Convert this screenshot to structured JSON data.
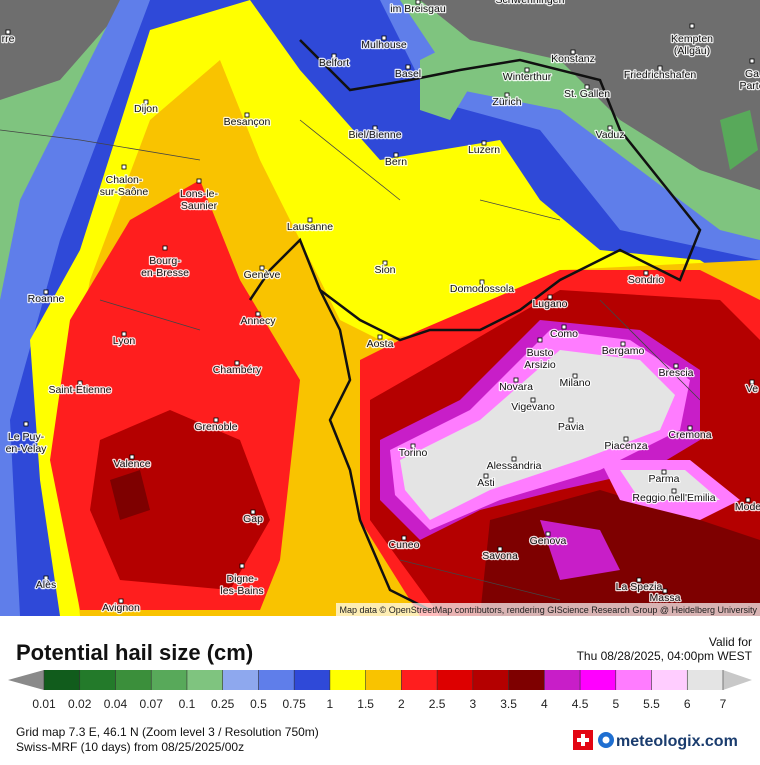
{
  "map": {
    "cities": [
      [
        "im Breisgau"
      ],
      [
        "Schwenningen"
      ],
      [
        "Mulhouse"
      ],
      [
        "Belfort"
      ],
      [
        "Basel"
      ],
      [
        "Konstanz"
      ],
      [
        "Kempten",
        "(Allgäu)"
      ],
      [
        "Winterthur"
      ],
      [
        "Friedrichshafen"
      ],
      [
        "St. Gallen"
      ],
      [
        "Zürich"
      ],
      [
        "Dijon"
      ],
      [
        "Besançon"
      ],
      [
        "Vaduz"
      ],
      [
        "Biel/Bienne"
      ],
      [
        "Chalon-",
        "sur-Saône"
      ],
      [
        "Bern"
      ],
      [
        "Luzern"
      ],
      [
        "Lons-le-",
        "Saunier"
      ],
      [
        "Lausanne"
      ],
      [
        "Bourg-",
        "en-Bresse"
      ],
      [
        "Sion"
      ],
      [
        "Genève"
      ],
      [
        "Domodossola"
      ],
      [
        "Sondrio"
      ],
      [
        "Lugano"
      ],
      [
        "Roanne"
      ],
      [
        "Annecy"
      ],
      [
        "Como"
      ],
      [
        "Lyon"
      ],
      [
        "Aosta"
      ],
      [
        "Bergamo"
      ],
      [
        "Busto",
        "Arsizio"
      ],
      [
        "Chambéry"
      ],
      [
        "Milano"
      ],
      [
        "Novara"
      ],
      [
        "Brescia"
      ],
      [
        "Saint-Étienne"
      ],
      [
        "Vigevano"
      ],
      [
        "Pavia"
      ],
      [
        "Grenoble"
      ],
      [
        "Le Puy-",
        "en-Velay"
      ],
      [
        "Cremona"
      ],
      [
        "Piacenza"
      ],
      [
        "Torino"
      ],
      [
        "Valence"
      ],
      [
        "Alessandria"
      ],
      [
        "Parma"
      ],
      [
        "Asti"
      ],
      [
        "Reggio nell'Emilia"
      ],
      [
        "Gap"
      ],
      [
        "Genova"
      ],
      [
        "Cuneo"
      ],
      [
        "Savona"
      ],
      [
        "Alès"
      ],
      [
        "Digne-",
        "les-Bains"
      ],
      [
        "La Spezia"
      ],
      [
        "Massa"
      ],
      [
        "Avignon"
      ],
      [
        "rre"
      ],
      [
        "Ga",
        "Parte"
      ],
      [
        "Ve"
      ],
      [
        "Mode"
      ]
    ],
    "attribution": "Map data © OpenStreetMap contributors, rendering GIScience Research Group @ Heidelberg University"
  },
  "legend": {
    "title": "Potential hail size (cm)",
    "ticks": [
      0.01,
      0.02,
      0.04,
      0.07,
      0.1,
      0.25,
      0.5,
      0.75,
      1,
      1.5,
      2,
      2.5,
      3,
      3.5,
      4,
      4.5,
      5,
      5.5,
      6,
      7
    ],
    "colors": [
      "#115c1c",
      "#237a2a",
      "#3b8f3b",
      "#58a95a",
      "#7fc47f",
      "#8ea8ee",
      "#5f7eea",
      "#2f49d8",
      "#ffff00",
      "#f9c300",
      "#ff1e1e",
      "#dd0000",
      "#b40000",
      "#7e0000",
      "#c81ec8",
      "#ff00ff",
      "#ff7cff",
      "#ffcdff",
      "#e4e4e4"
    ]
  },
  "valid": {
    "label": "Valid for",
    "time": "Thu 08/28/2025, 04:00pm WEST"
  },
  "footer": {
    "grid": "Grid map 7.3 E, 46.1 N (Zoom level 3 / Resolution 750m)",
    "model": "Swiss-MRF (10 days)  from  08/25/2025/00z",
    "brand": "meteologix.com"
  }
}
